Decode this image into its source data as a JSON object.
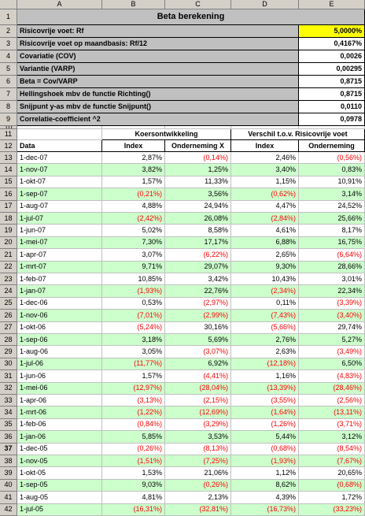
{
  "columns": [
    "A",
    "B",
    "C",
    "D",
    "E"
  ],
  "row_numbers": [
    "1",
    "2",
    "3",
    "4",
    "5",
    "6",
    "7",
    "8",
    "9",
    "10",
    "11",
    "12",
    "13",
    "14",
    "15",
    "16",
    "17",
    "18",
    "19",
    "20",
    "21",
    "22",
    "23",
    "24",
    "25",
    "26",
    "27",
    "28",
    "29",
    "30",
    "31",
    "32",
    "33",
    "34",
    "35",
    "36",
    "37",
    "38",
    "39",
    "40",
    "41",
    "42"
  ],
  "title": "Beta berekening",
  "summary": [
    {
      "label": "Risicovrije voet: Rf",
      "value": "5,0000%"
    },
    {
      "label": "Risicovrije voet op maandbasis: Rf/12",
      "value": "0,4167%"
    },
    {
      "label": "Covariatie (COV)",
      "value": "0,0026"
    },
    {
      "label": "Variantie (VARP)",
      "value": "0,00295"
    },
    {
      "label": "Beta = Cov/VARP",
      "value": "0,8715"
    },
    {
      "label": "Hellingshoek mbv de functie Richting()",
      "value": "0,8715"
    },
    {
      "label": "Snijpunt y-as mbv de functie Snijpunt()",
      "value": "0,0110"
    },
    {
      "label": "Correlatie-coefficient ^2",
      "value": "0,0978"
    }
  ],
  "group_headers": [
    "Koersontwikkeling",
    "Verschil t.o.v. Risicovrije voet"
  ],
  "headers": [
    "Data",
    "Index",
    "Onderneming X",
    "Index",
    "Onderneming"
  ],
  "rows": [
    [
      "1-dec-07",
      "2,87%",
      "(0,14%)",
      "2,46%",
      "(0,56%)"
    ],
    [
      "1-nov-07",
      "3,82%",
      "1,25%",
      "3,40%",
      "0,83%"
    ],
    [
      "1-okt-07",
      "1,57%",
      "11,33%",
      "1,15%",
      "10,91%"
    ],
    [
      "1-sep-07",
      "(0,21%)",
      "3,56%",
      "(0,62%)",
      "3,14%"
    ],
    [
      "1-aug-07",
      "4,88%",
      "24,94%",
      "4,47%",
      "24,52%"
    ],
    [
      "1-jul-07",
      "(2,42%)",
      "26,08%",
      "(2,84%)",
      "25,66%"
    ],
    [
      "1-jun-07",
      "5,02%",
      "8,58%",
      "4,61%",
      "8,17%"
    ],
    [
      "1-mei-07",
      "7,30%",
      "17,17%",
      "6,88%",
      "16,75%"
    ],
    [
      "1-apr-07",
      "3,07%",
      "(6,22%)",
      "2,65%",
      "(6,64%)"
    ],
    [
      "1-mrt-07",
      "9,71%",
      "29,07%",
      "9,30%",
      "28,66%"
    ],
    [
      "1-feb-07",
      "10,85%",
      "3,42%",
      "10,43%",
      "3,01%"
    ],
    [
      "1-jan-07",
      "(1,93%)",
      "22,76%",
      "(2,34%)",
      "22,34%"
    ],
    [
      "1-dec-06",
      "0,53%",
      "(2,97%)",
      "0,11%",
      "(3,39%)"
    ],
    [
      "1-nov-06",
      "(7,01%)",
      "(2,99%)",
      "(7,43%)",
      "(3,40%)"
    ],
    [
      "1-okt-06",
      "(5,24%)",
      "30,16%",
      "(5,66%)",
      "29,74%"
    ],
    [
      "1-sep-06",
      "3,18%",
      "5,69%",
      "2,76%",
      "5,27%"
    ],
    [
      "1-aug-06",
      "3,05%",
      "(3,07%)",
      "2,63%",
      "(3,49%)"
    ],
    [
      "1-jul-06",
      "(11,77%)",
      "6,92%",
      "(12,18%)",
      "6,50%"
    ],
    [
      "1-jun-06",
      "1,57%",
      "(4,41%)",
      "1,16%",
      "(4,83%)"
    ],
    [
      "1-mei-06",
      "(12,97%)",
      "(28,04%)",
      "(13,39%)",
      "(28,46%)"
    ],
    [
      "1-apr-06",
      "(3,13%)",
      "(2,15%)",
      "(3,55%)",
      "(2,56%)"
    ],
    [
      "1-mrt-06",
      "(1,22%)",
      "(12,69%)",
      "(1,64%)",
      "(13,11%)"
    ],
    [
      "1-feb-06",
      "(0,84%)",
      "(3,29%)",
      "(1,26%)",
      "(3,71%)"
    ],
    [
      "1-jan-06",
      "5,85%",
      "3,53%",
      "5,44%",
      "3,12%"
    ],
    [
      "1-dec-05",
      "(0,26%)",
      "(8,13%)",
      "(0,68%)",
      "(8,54%)"
    ],
    [
      "1-nov-05",
      "(1,51%)",
      "(7,25%)",
      "(1,93%)",
      "(7,67%)"
    ],
    [
      "1-okt-05",
      "1,53%",
      "21,06%",
      "1,12%",
      "20,65%"
    ],
    [
      "1-sep-05",
      "9,03%",
      "(0,26%)",
      "8,62%",
      "(0,68%)"
    ],
    [
      "1-aug-05",
      "4,81%",
      "2,13%",
      "4,39%",
      "1,72%"
    ],
    [
      "1-jul-05",
      "(16,31%)",
      "(32,81%)",
      "(16,73%)",
      "(33,23%)"
    ]
  ]
}
